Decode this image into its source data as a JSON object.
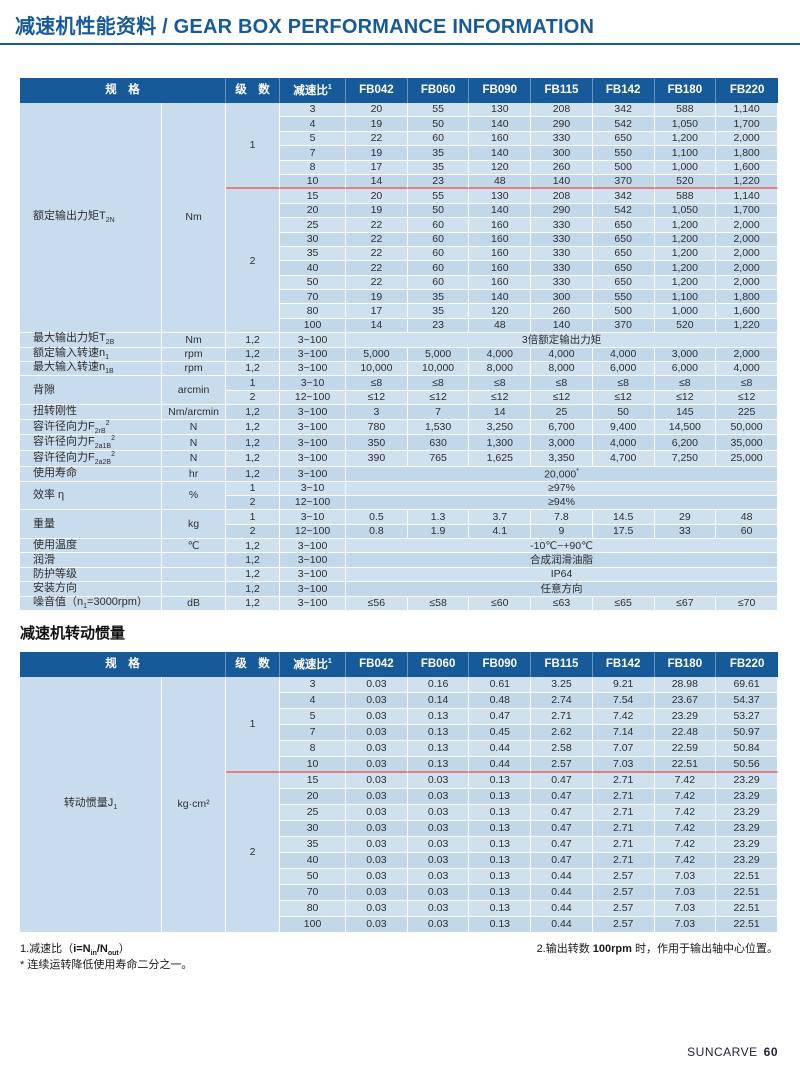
{
  "page": {
    "title": "减速机性能资料 / GEAR BOX PERFORMANCE INFORMATION",
    "section2_heading": "减速机转动惯量",
    "brand": "SUNCARVE",
    "page_number": "60"
  },
  "colors": {
    "accent_blue": "#175a99",
    "header_bg": "#175a99",
    "row_light": "#cfe0ef",
    "row_dark": "#c3d7ea",
    "label_col": "#c9dcee",
    "red_divider": "#e0807f"
  },
  "notes": {
    "note1_parts": [
      {
        "t": "1.减速比（"
      },
      {
        "t": "i=N",
        "b": true
      },
      {
        "t": "in",
        "sub": true,
        "b": true
      },
      {
        "t": "/N",
        "b": true
      },
      {
        "t": "out",
        "sub": true,
        "b": true
      },
      {
        "t": "）"
      }
    ],
    "note_star": "* 连续运转降低使用寿命二分之一。",
    "note2_parts": [
      {
        "t": "2.输出转数 "
      },
      {
        "t": "100rpm",
        "b": true
      },
      {
        "t": " 时，作用于输出轴中心位置。"
      }
    ]
  },
  "tables": [
    {
      "id": "t1",
      "name": "performance-table",
      "header": [
        {
          "t": "规　格",
          "c": 2
        },
        {
          "t": "级　数"
        },
        {
          "p": [
            {
              "t": "减速比"
            },
            {
              "t": "1",
              "sup": true
            }
          ]
        },
        {
          "t": "FB042"
        },
        {
          "t": "FB060"
        },
        {
          "t": "FB090"
        },
        {
          "t": "FB115"
        },
        {
          "t": "FB142"
        },
        {
          "t": "FB180"
        },
        {
          "t": "FB220"
        }
      ],
      "rows": [
        [
          {
            "p": [
              {
                "t": "额定输出力矩T"
              },
              {
                "t": "2N",
                "sub": true
              }
            ],
            "r": 16,
            "k": "lbl"
          },
          {
            "t": "Nm",
            "r": 16,
            "k": "unit"
          },
          {
            "t": "1",
            "r": 6,
            "k": "stg rl"
          },
          "3",
          "20",
          "55",
          "130",
          "208",
          "342",
          "588",
          "1,140"
        ],
        [
          "4",
          "19",
          "50",
          "140",
          "290",
          "542",
          "1,050",
          "1,700"
        ],
        [
          "5",
          "22",
          "60",
          "160",
          "330",
          "650",
          "1,200",
          "2,000"
        ],
        [
          "7",
          "19",
          "35",
          "140",
          "300",
          "550",
          "1,100",
          "1,800"
        ],
        [
          "8",
          "17",
          "35",
          "120",
          "260",
          "500",
          "1,000",
          "1,600"
        ],
        [
          {
            "t": "10",
            "k": "rl"
          },
          {
            "t": "14",
            "k": "rl"
          },
          {
            "t": "23",
            "k": "rl"
          },
          {
            "t": "48",
            "k": "rl"
          },
          {
            "t": "140",
            "k": "rl"
          },
          {
            "t": "370",
            "k": "rl"
          },
          {
            "t": "520",
            "k": "rl"
          },
          {
            "t": "1,220",
            "k": "rl"
          }
        ],
        [
          {
            "t": "2",
            "r": 10,
            "k": "stg"
          },
          "15",
          "20",
          "55",
          "130",
          "208",
          "342",
          "588",
          "1,140"
        ],
        [
          "20",
          "19",
          "50",
          "140",
          "290",
          "542",
          "1,050",
          "1,700"
        ],
        [
          "25",
          "22",
          "60",
          "160",
          "330",
          "650",
          "1,200",
          "2,000"
        ],
        [
          "30",
          "22",
          "60",
          "160",
          "330",
          "650",
          "1,200",
          "2,000"
        ],
        [
          "35",
          "22",
          "60",
          "160",
          "330",
          "650",
          "1,200",
          "2,000"
        ],
        [
          "40",
          "22",
          "60",
          "160",
          "330",
          "650",
          "1,200",
          "2,000"
        ],
        [
          "50",
          "22",
          "60",
          "160",
          "330",
          "650",
          "1,200",
          "2,000"
        ],
        [
          "70",
          "19",
          "35",
          "140",
          "300",
          "550",
          "1,100",
          "1,800"
        ],
        [
          "80",
          "17",
          "35",
          "120",
          "260",
          "500",
          "1,000",
          "1,600"
        ],
        [
          "100",
          "14",
          "23",
          "48",
          "140",
          "370",
          "520",
          "1,220"
        ],
        [
          {
            "p": [
              {
                "t": "最大输出力矩T"
              },
              {
                "t": "2B",
                "sub": true
              }
            ],
            "k": "lbl"
          },
          {
            "t": "Nm",
            "k": "unit"
          },
          "1,2",
          "3~100",
          {
            "t": "3倍额定输出力矩",
            "c": 7
          }
        ],
        [
          {
            "p": [
              {
                "t": "额定输入转速n"
              },
              {
                "t": "1",
                "sub": true
              }
            ],
            "k": "lbl"
          },
          {
            "t": "rpm",
            "k": "unit"
          },
          "1,2",
          "3~100",
          "5,000",
          "5,000",
          "4,000",
          "4,000",
          "4,000",
          "3,000",
          "2,000"
        ],
        [
          {
            "p": [
              {
                "t": "最大输入转速n"
              },
              {
                "t": "1B",
                "sub": true
              }
            ],
            "k": "lbl"
          },
          {
            "t": "rpm",
            "k": "unit"
          },
          "1,2",
          "3~100",
          "10,000",
          "10,000",
          "8,000",
          "8,000",
          "6,000",
          "6,000",
          "4,000"
        ],
        [
          {
            "t": "背隙",
            "r": 2,
            "k": "lbl"
          },
          {
            "t": "arcmin",
            "r": 2,
            "k": "unit"
          },
          "1",
          "3~10",
          "≤8",
          "≤8",
          "≤8",
          "≤8",
          "≤8",
          "≤8",
          "≤8"
        ],
        [
          "2",
          "12~100",
          "≤12",
          "≤12",
          "≤12",
          "≤12",
          "≤12",
          "≤12",
          "≤12"
        ],
        [
          {
            "t": "扭转刚性",
            "k": "lbl"
          },
          {
            "t": "Nm/arcmin",
            "k": "unit"
          },
          "1,2",
          "3~100",
          "3",
          "7",
          "14",
          "25",
          "50",
          "145",
          "225"
        ],
        [
          {
            "p": [
              {
                "t": "容许径向力F"
              },
              {
                "t": "2rB",
                "sub": true
              },
              {
                "t": "2",
                "sup": true
              }
            ],
            "k": "lbl"
          },
          {
            "t": "N",
            "k": "unit"
          },
          "1,2",
          "3~100",
          "780",
          "1,530",
          "3,250",
          "6,700",
          "9,400",
          "14,500",
          "50,000"
        ],
        [
          {
            "p": [
              {
                "t": "容许径向力F"
              },
              {
                "t": "2a1B",
                "sub": true
              },
              {
                "t": "2",
                "sup": true
              }
            ],
            "k": "lbl"
          },
          {
            "t": "N",
            "k": "unit"
          },
          "1,2",
          "3~100",
          "350",
          "630",
          "1,300",
          "3,000",
          "4,000",
          "6,200",
          "35,000"
        ],
        [
          {
            "p": [
              {
                "t": "容许径向力F"
              },
              {
                "t": "2a2B",
                "sub": true
              },
              {
                "t": "2",
                "sup": true
              }
            ],
            "k": "lbl"
          },
          {
            "t": "N",
            "k": "unit"
          },
          "1,2",
          "3~100",
          "390",
          "765",
          "1,625",
          "3,350",
          "4,700",
          "7,250",
          "25,000"
        ],
        [
          {
            "t": "使用寿命",
            "k": "lbl"
          },
          {
            "t": "hr",
            "k": "unit"
          },
          "1,2",
          "3~100",
          {
            "p": [
              {
                "t": "20,000"
              },
              {
                "t": "*",
                "sup": true
              }
            ],
            "c": 7
          }
        ],
        [
          {
            "t": "效率 η",
            "r": 2,
            "k": "lbl"
          },
          {
            "t": "%",
            "r": 2,
            "k": "unit"
          },
          "1",
          "3~10",
          {
            "t": "≥97%",
            "c": 7
          }
        ],
        [
          "2",
          "12~100",
          {
            "t": "≥94%",
            "c": 7
          }
        ],
        [
          {
            "t": "重量",
            "r": 2,
            "k": "lbl"
          },
          {
            "t": "kg",
            "r": 2,
            "k": "unit"
          },
          "1",
          "3~10",
          "0.5",
          "1.3",
          "3.7",
          "7.8",
          "14.5",
          "29",
          "48"
        ],
        [
          "2",
          "12~100",
          "0.8",
          "1.9",
          "4.1",
          "9",
          "17.5",
          "33",
          "60"
        ],
        [
          {
            "t": "使用温度",
            "k": "lbl"
          },
          {
            "t": "℃",
            "k": "unit"
          },
          "1,2",
          "3~100",
          {
            "t": "-10℃~+90℃",
            "c": 7
          }
        ],
        [
          {
            "t": "润滑",
            "k": "lbl"
          },
          {
            "t": "",
            "k": "unit"
          },
          "1,2",
          "3~100",
          {
            "t": "合成润滑油脂",
            "c": 7
          }
        ],
        [
          {
            "t": "防护等级",
            "k": "lbl"
          },
          {
            "t": "",
            "k": "unit"
          },
          "1,2",
          "3~100",
          {
            "t": "IP64",
            "c": 7
          }
        ],
        [
          {
            "t": "安装方向",
            "k": "lbl"
          },
          {
            "t": "",
            "k": "unit"
          },
          "1,2",
          "3~100",
          {
            "t": "任意方向",
            "c": 7
          }
        ],
        [
          {
            "p": [
              {
                "t": "噪音值（n"
              },
              {
                "t": "1",
                "sub": true
              },
              {
                "t": "=3000rpm）"
              }
            ],
            "k": "lbl"
          },
          {
            "t": "dB",
            "k": "unit"
          },
          "1,2",
          "3~100",
          "≤56",
          "≤58",
          "≤60",
          "≤63",
          "≤65",
          "≤67",
          "≤70"
        ]
      ]
    },
    {
      "id": "t2",
      "name": "inertia-table",
      "header": [
        {
          "t": "规　格",
          "c": 2
        },
        {
          "t": "级　数"
        },
        {
          "p": [
            {
              "t": "减速比"
            },
            {
              "t": "1",
              "sup": true
            }
          ]
        },
        {
          "t": "FB042"
        },
        {
          "t": "FB060"
        },
        {
          "t": "FB090"
        },
        {
          "t": "FB115"
        },
        {
          "t": "FB142"
        },
        {
          "t": "FB180"
        },
        {
          "t": "FB220"
        }
      ],
      "rows": [
        [
          {
            "p": [
              {
                "t": "转动惯量J"
              },
              {
                "t": "1",
                "sub": true
              }
            ],
            "r": 16,
            "k": "lbl lblc"
          },
          {
            "t": "kg·cm²",
            "r": 16,
            "k": "unit"
          },
          {
            "t": "1",
            "r": 6,
            "k": "stg rl"
          },
          "3",
          "0.03",
          "0.16",
          "0.61",
          "3.25",
          "9.21",
          "28.98",
          "69.61"
        ],
        [
          "4",
          "0.03",
          "0.14",
          "0.48",
          "2.74",
          "7.54",
          "23.67",
          "54.37"
        ],
        [
          "5",
          "0.03",
          "0.13",
          "0.47",
          "2.71",
          "7.42",
          "23.29",
          "53.27"
        ],
        [
          "7",
          "0.03",
          "0.13",
          "0.45",
          "2.62",
          "7.14",
          "22.48",
          "50.97"
        ],
        [
          "8",
          "0.03",
          "0.13",
          "0.44",
          "2.58",
          "7.07",
          "22.59",
          "50.84"
        ],
        [
          {
            "t": "10",
            "k": "rl"
          },
          {
            "t": "0.03",
            "k": "rl"
          },
          {
            "t": "0.13",
            "k": "rl"
          },
          {
            "t": "0.44",
            "k": "rl"
          },
          {
            "t": "2.57",
            "k": "rl"
          },
          {
            "t": "7.03",
            "k": "rl"
          },
          {
            "t": "22.51",
            "k": "rl"
          },
          {
            "t": "50.56",
            "k": "rl"
          }
        ],
        [
          {
            "t": "2",
            "r": 10,
            "k": "stg"
          },
          "15",
          "0.03",
          "0.03",
          "0.13",
          "0.47",
          "2.71",
          "7.42",
          "23.29"
        ],
        [
          "20",
          "0.03",
          "0.03",
          "0.13",
          "0.47",
          "2.71",
          "7.42",
          "23.29"
        ],
        [
          "25",
          "0.03",
          "0.03",
          "0.13",
          "0.47",
          "2.71",
          "7.42",
          "23.29"
        ],
        [
          "30",
          "0.03",
          "0.03",
          "0.13",
          "0.47",
          "2.71",
          "7.42",
          "23.29"
        ],
        [
          "35",
          "0.03",
          "0.03",
          "0.13",
          "0.47",
          "2.71",
          "7.42",
          "23.29"
        ],
        [
          "40",
          "0.03",
          "0.03",
          "0.13",
          "0.47",
          "2.71",
          "7.42",
          "23.29"
        ],
        [
          "50",
          "0.03",
          "0.03",
          "0.13",
          "0.44",
          "2.57",
          "7.03",
          "22.51"
        ],
        [
          "70",
          "0.03",
          "0.03",
          "0.13",
          "0.44",
          "2.57",
          "7.03",
          "22.51"
        ],
        [
          "80",
          "0.03",
          "0.03",
          "0.13",
          "0.44",
          "2.57",
          "7.03",
          "22.51"
        ],
        [
          "100",
          "0.03",
          "0.03",
          "0.13",
          "0.44",
          "2.57",
          "7.03",
          "22.51"
        ]
      ]
    }
  ]
}
